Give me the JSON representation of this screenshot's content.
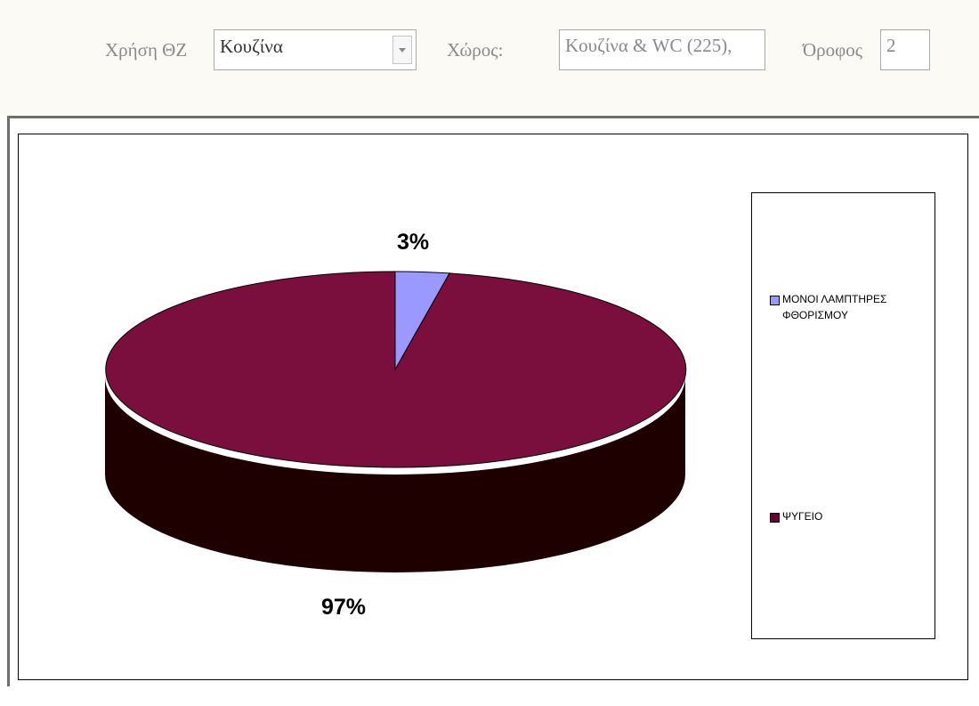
{
  "filters": {
    "usage_label": "Χρήση ΘΖ",
    "usage_value": "Κουζίνα",
    "space_label": "Χώρος:",
    "space_value": "Κουζίνα & WC (225),",
    "floor_label": "Όροφος",
    "floor_value": "2"
  },
  "chart_data": {
    "type": "pie",
    "style": "3d",
    "title": "",
    "slices": [
      {
        "name": "ΜΟΝΟΙ ΛΑΜΠΤΗΡΕΣ ΦΘΟΡΙΣΜΟΥ",
        "value": 3,
        "label": "3%",
        "color": "#9999ff"
      },
      {
        "name": "ΨΥΓΕΙΟ",
        "value": 97,
        "label": "97%",
        "color": "#993366"
      }
    ],
    "legend": {
      "position": "right",
      "items": [
        {
          "line1": "ΜΟΝΟΙ ΛΑΜΠΤΗΡΕΣ",
          "line2": "ΦΘΟΡΙΣΜΟΥ",
          "color": "#9999ff"
        },
        {
          "line1": "ΨΥΓΕΙΟ",
          "line2": "",
          "color": "#660033"
        }
      ]
    }
  }
}
